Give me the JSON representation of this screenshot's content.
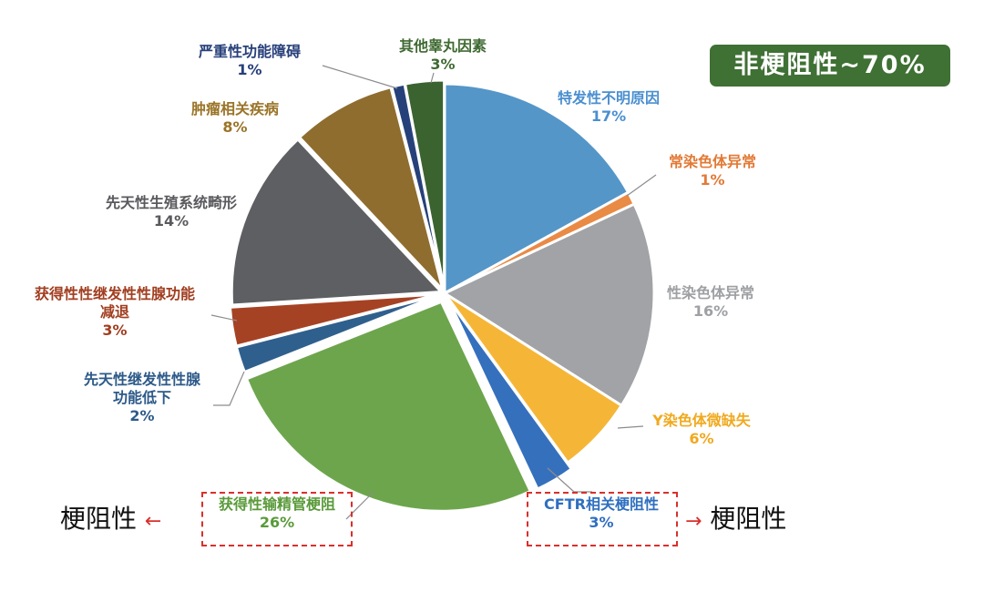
{
  "badge": {
    "text": "非梗阻性~70%"
  },
  "callouts": {
    "left": {
      "text": "梗阻性",
      "arrow": "←"
    },
    "right": {
      "text": "梗阻性",
      "arrow": "→"
    }
  },
  "chart_data": {
    "type": "pie",
    "title": "",
    "legend": "none",
    "start_angle_deg": 0,
    "direction": "clockwise",
    "slices": [
      {
        "name": "特发性不明原因",
        "value": 17,
        "label": "17%",
        "color": "#5596c8",
        "text_color": "#4a8fd0"
      },
      {
        "name": "常染色体异常",
        "value": 1,
        "label": "1%",
        "color": "#e98a45",
        "text_color": "#e27a36"
      },
      {
        "name": "性染色体异常",
        "value": 16,
        "label": "16%",
        "color": "#a1a3a6",
        "text_color": "#9ea0a3"
      },
      {
        "name": "Y染色体微缺失",
        "value": 6,
        "label": "6%",
        "color": "#f5b638",
        "text_color": "#f0a91e"
      },
      {
        "name": "CFTR相关梗阻性",
        "value": 3,
        "label": "3%",
        "color": "#3570bd",
        "text_color": "#2f6fc0"
      },
      {
        "name": "获得性输精管梗阻",
        "value": 26,
        "label": "26%",
        "color": "#6da54d",
        "text_color": "#5a9a3a"
      },
      {
        "name": "先天性继发性性腺功能低下",
        "value": 2,
        "label": "2%",
        "color": "#2f5f8d",
        "text_color": "#2d5a89"
      },
      {
        "name": "获得性性继发性性腺功能减退",
        "value": 3,
        "label": "3%",
        "color": "#a64224",
        "text_color": "#a13e20"
      },
      {
        "name": "先天性生殖系统畸形",
        "value": 14,
        "label": "14%",
        "color": "#5e5f63",
        "text_color": "#5a5a5e"
      },
      {
        "name": "肿瘤相关疾病",
        "value": 8,
        "label": "8%",
        "color": "#8f6d2f",
        "text_color": "#9a7428"
      },
      {
        "name": "严重性功能障碍",
        "value": 1,
        "label": "1%",
        "color": "#26417a",
        "text_color": "#28407a"
      },
      {
        "name": "其他睾丸因素",
        "value": 3,
        "label": "3%",
        "color": "#3b6330",
        "text_color": "#3f6a32"
      }
    ]
  }
}
